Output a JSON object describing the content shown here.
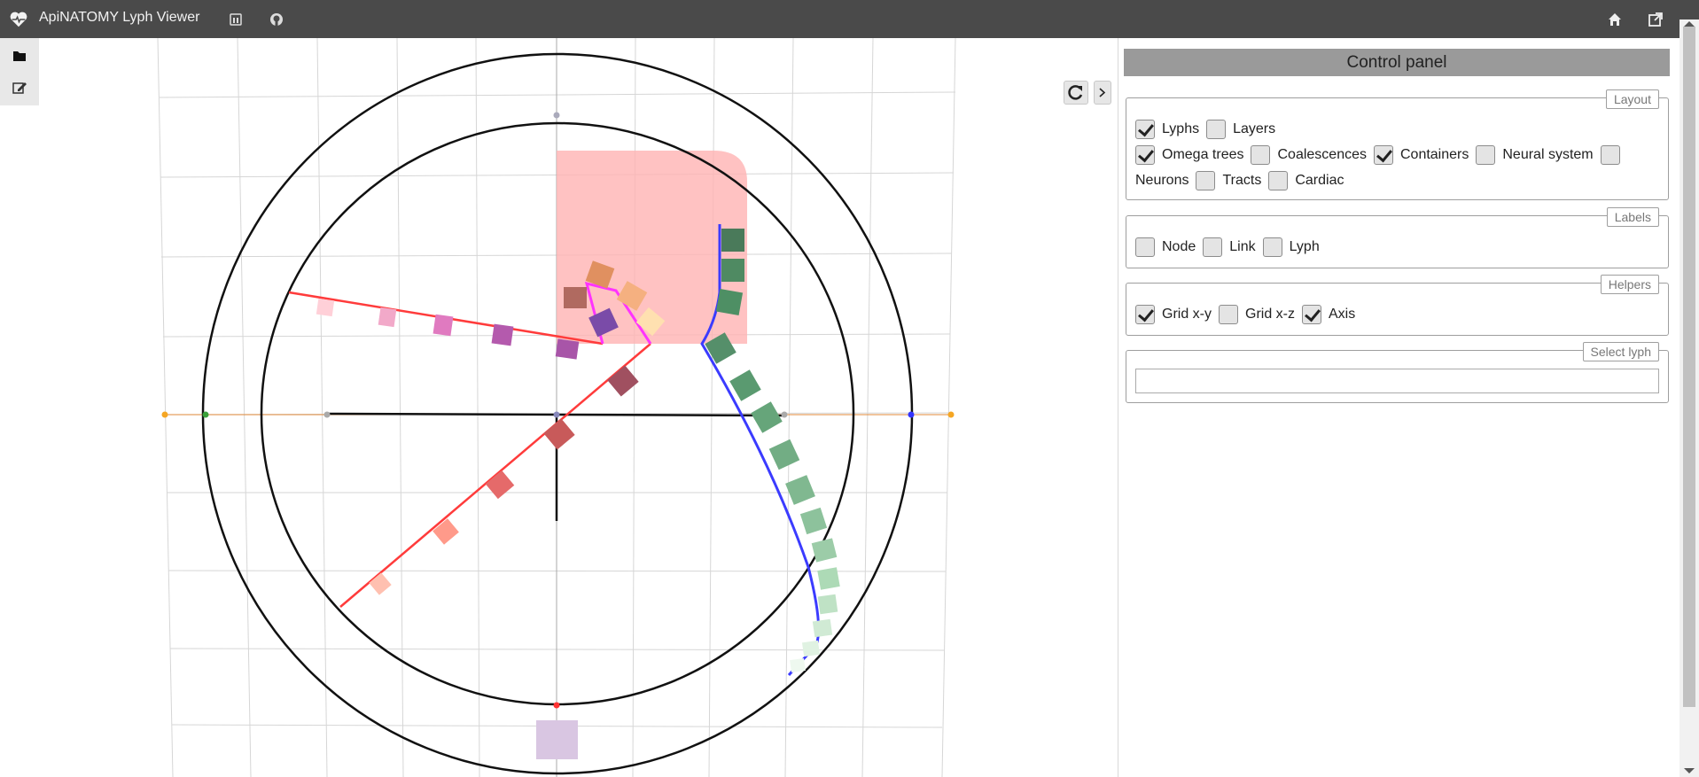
{
  "app": {
    "title": "ApiNATOMY Lyph Viewer"
  },
  "icons": {
    "logo": "heart-pulse-icon",
    "models": "bank-icon",
    "github": "github-icon",
    "home": "home-icon",
    "external": "external-link-icon",
    "folder": "folder-icon",
    "edit": "edit-icon",
    "refresh": "refresh-icon",
    "toggle": "chevron-right-icon"
  },
  "panel": {
    "title": "Control panel",
    "layout": {
      "legend": "Layout",
      "options": [
        {
          "label": "Lyphs",
          "checked": true
        },
        {
          "label": "Layers",
          "checked": false
        },
        {
          "label": "Omega trees",
          "checked": true
        },
        {
          "label": "Coalescences",
          "checked": false
        },
        {
          "label": "Containers",
          "checked": true
        },
        {
          "label": "Neural system",
          "checked": false
        },
        {
          "label": "Neurons",
          "checked": false
        },
        {
          "label": "Tracts",
          "checked": false
        },
        {
          "label": "Cardiac",
          "checked": false
        }
      ]
    },
    "labels": {
      "legend": "Labels",
      "options": [
        {
          "label": "Node",
          "checked": false
        },
        {
          "label": "Link",
          "checked": false
        },
        {
          "label": "Lyph",
          "checked": false
        }
      ]
    },
    "helpers": {
      "legend": "Helpers",
      "options": [
        {
          "label": "Grid x-y",
          "checked": true
        },
        {
          "label": "Grid x-z",
          "checked": false
        },
        {
          "label": "Axis",
          "checked": true
        }
      ]
    },
    "select": {
      "legend": "Select lyph",
      "value": ""
    }
  },
  "colors": {
    "topbar": "#4a4a4a",
    "accent_red": "#ff3b3b",
    "accent_blue": "#3b3bff",
    "accent_magenta": "#ff33ff"
  }
}
